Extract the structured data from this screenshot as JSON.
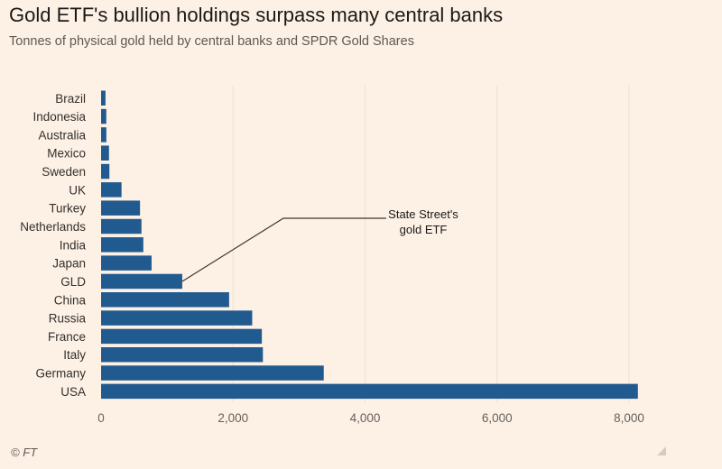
{
  "chart_data": {
    "type": "bar",
    "orientation": "horizontal",
    "title": "Gold ETF's bullion holdings surpass many central banks",
    "subtitle": "Tonnes of physical gold held by central banks and SPDR Gold Shares",
    "categories": [
      "Brazil",
      "Indonesia",
      "Australia",
      "Mexico",
      "Sweden",
      "UK",
      "Turkey",
      "Netherlands",
      "India",
      "Japan",
      "GLD",
      "China",
      "Russia",
      "France",
      "Italy",
      "Germany",
      "USA"
    ],
    "values": [
      67,
      79,
      80,
      120,
      126,
      310,
      590,
      612,
      640,
      765,
      1230,
      1940,
      2290,
      2436,
      2452,
      3374,
      8134
    ],
    "xlim": [
      0,
      8000
    ],
    "xticks": [
      0,
      2000,
      4000,
      6000,
      8000
    ],
    "xtick_labels": [
      "0",
      "2,000",
      "4,000",
      "6,000",
      "8,000"
    ],
    "grid": "vertical",
    "bar_color": "#215a8f",
    "annotation": {
      "lines": [
        "State Street's",
        "gold ETF"
      ],
      "target": "GLD"
    }
  },
  "source": "© FT",
  "corner_icon": "resize-grip-icon"
}
